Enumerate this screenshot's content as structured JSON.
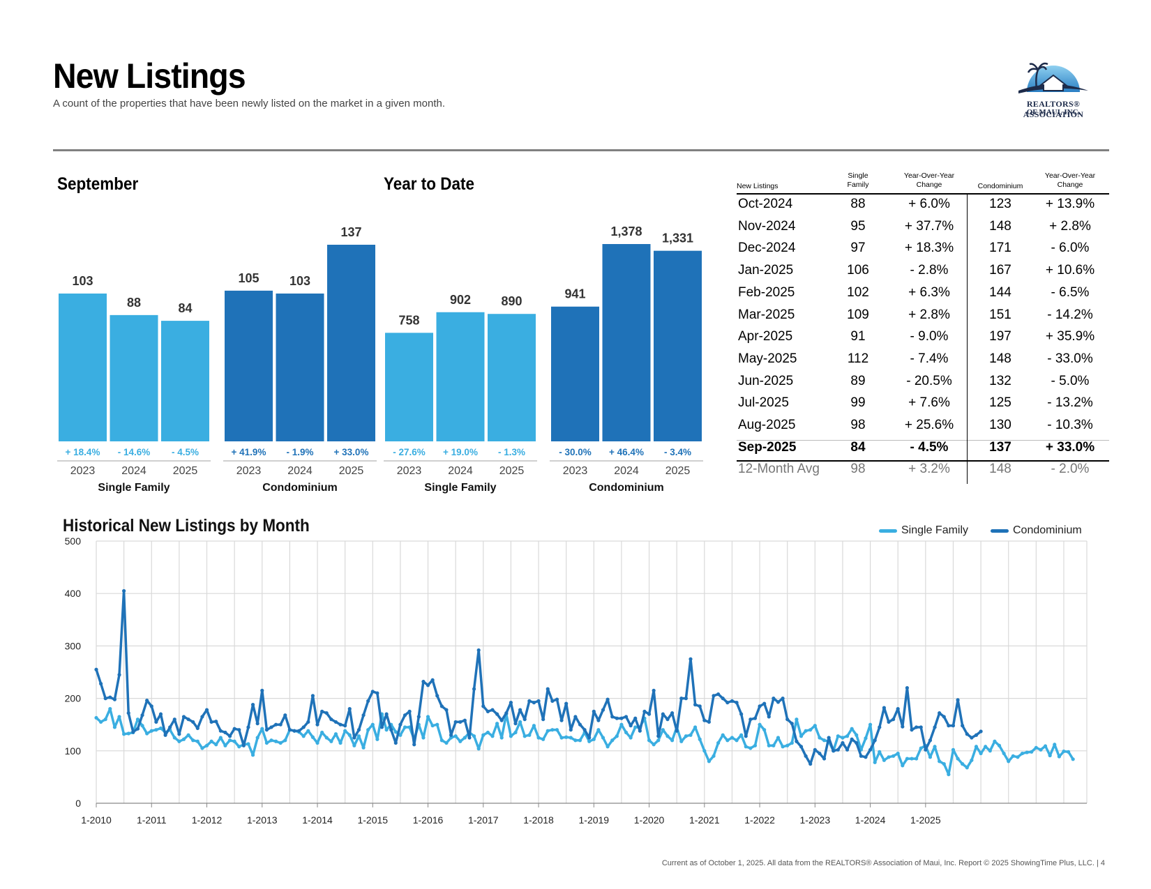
{
  "header": {
    "title": "New Listings",
    "subtitle": "A count of the properties that have been newly listed on the market in a given month."
  },
  "logo": {
    "line1": "REALTORS® ASSOCIATION",
    "line2": "OF MAUI, INC."
  },
  "colors": {
    "single_family": "#3aaee1",
    "condominium": "#1f72b8",
    "grid": "#d9d9d9",
    "sf_line": "#3aaee1",
    "condo_line": "#1f72b8"
  },
  "september": {
    "title": "September",
    "groups": [
      {
        "name": "Single Family",
        "bars": [
          {
            "year": "2023",
            "value": 103,
            "label": "103",
            "change": "+ 18.4%"
          },
          {
            "year": "2024",
            "value": 88,
            "label": "88",
            "change": "- 14.6%"
          },
          {
            "year": "2025",
            "value": 84,
            "label": "84",
            "change": "- 4.5%"
          }
        ]
      },
      {
        "name": "Condominium",
        "bars": [
          {
            "year": "2023",
            "value": 105,
            "label": "105",
            "change": "+ 41.9%"
          },
          {
            "year": "2024",
            "value": 103,
            "label": "103",
            "change": "- 1.9%"
          },
          {
            "year": "2025",
            "value": 137,
            "label": "137",
            "change": "+ 33.0%"
          }
        ]
      }
    ]
  },
  "ytd": {
    "title": "Year to Date",
    "groups": [
      {
        "name": "Single Family",
        "bars": [
          {
            "year": "2023",
            "value": 758,
            "label": "758",
            "change": "- 27.6%"
          },
          {
            "year": "2024",
            "value": 902,
            "label": "902",
            "change": "+ 19.0%"
          },
          {
            "year": "2025",
            "value": 890,
            "label": "890",
            "change": "- 1.3%"
          }
        ]
      },
      {
        "name": "Condominium",
        "bars": [
          {
            "year": "2023",
            "value": 941,
            "label": "941",
            "change": "- 30.0%"
          },
          {
            "year": "2024",
            "value": 1378,
            "label": "1,378",
            "change": "+ 46.4%"
          },
          {
            "year": "2025",
            "value": 1331,
            "label": "1,331",
            "change": "- 3.4%"
          }
        ]
      }
    ]
  },
  "table": {
    "headers": {
      "label": "New Listings",
      "sf": [
        "Single",
        "Family"
      ],
      "sf_change": [
        "Year-Over-Year",
        "Change"
      ],
      "condo": "Condominium",
      "condo_change": [
        "Year-Over-Year",
        "Change"
      ]
    },
    "rows": [
      {
        "month": "Oct-2024",
        "sf": "88",
        "sf_change": "+ 6.0%",
        "condo": "123",
        "condo_change": "+ 13.9%"
      },
      {
        "month": "Nov-2024",
        "sf": "95",
        "sf_change": "+ 37.7%",
        "condo": "148",
        "condo_change": "+ 2.8%"
      },
      {
        "month": "Dec-2024",
        "sf": "97",
        "sf_change": "+ 18.3%",
        "condo": "171",
        "condo_change": "- 6.0%"
      },
      {
        "month": "Jan-2025",
        "sf": "106",
        "sf_change": "- 2.8%",
        "condo": "167",
        "condo_change": "+ 10.6%"
      },
      {
        "month": "Feb-2025",
        "sf": "102",
        "sf_change": "+ 6.3%",
        "condo": "144",
        "condo_change": "- 6.5%"
      },
      {
        "month": "Mar-2025",
        "sf": "109",
        "sf_change": "+ 2.8%",
        "condo": "151",
        "condo_change": "- 14.2%"
      },
      {
        "month": "Apr-2025",
        "sf": "91",
        "sf_change": "- 9.0%",
        "condo": "197",
        "condo_change": "+ 35.9%"
      },
      {
        "month": "May-2025",
        "sf": "112",
        "sf_change": "- 7.4%",
        "condo": "148",
        "condo_change": "- 33.0%"
      },
      {
        "month": "Jun-2025",
        "sf": "89",
        "sf_change": "- 20.5%",
        "condo": "132",
        "condo_change": "- 5.0%"
      },
      {
        "month": "Jul-2025",
        "sf": "99",
        "sf_change": "+ 7.6%",
        "condo": "125",
        "condo_change": "- 13.2%"
      },
      {
        "month": "Aug-2025",
        "sf": "98",
        "sf_change": "+ 25.6%",
        "condo": "130",
        "condo_change": "- 10.3%"
      },
      {
        "month": "Sep-2025",
        "sf": "84",
        "sf_change": "- 4.5%",
        "condo": "137",
        "condo_change": "+ 33.0%"
      }
    ],
    "avg": {
      "month": "12-Month Avg",
      "sf": "98",
      "sf_change": "+ 3.2%",
      "condo": "148",
      "condo_change": "- 2.0%"
    }
  },
  "chart_data": {
    "type": "line",
    "title": "Historical New Listings by Month",
    "ylim": [
      0,
      500
    ],
    "yticks": [
      0,
      100,
      200,
      300,
      400,
      500
    ],
    "xticks": [
      "1-2010",
      "1-2011",
      "1-2012",
      "1-2013",
      "1-2014",
      "1-2015",
      "1-2016",
      "1-2017",
      "1-2018",
      "1-2019",
      "1-2020",
      "1-2021",
      "1-2022",
      "1-2023",
      "1-2024",
      "1-2025"
    ],
    "start": "1-2010",
    "end": "9-2025",
    "legend_position": "top-right",
    "series": [
      {
        "name": "Single Family",
        "values": [
          163,
          155,
          160,
          180,
          145,
          165,
          132,
          133,
          135,
          160,
          148,
          133,
          138,
          140,
          143,
          135,
          140,
          125,
          118,
          122,
          130,
          120,
          118,
          105,
          110,
          118,
          112,
          125,
          110,
          120,
          118,
          108,
          112,
          113,
          92,
          125,
          142,
          115,
          120,
          118,
          115,
          120,
          140,
          138,
          136,
          128,
          138,
          126,
          115,
          135,
          125,
          118,
          132,
          115,
          138,
          130,
          110,
          128,
          106,
          140,
          150,
          122,
          170,
          140,
          150,
          136,
          130,
          145,
          145,
          122,
          150,
          125,
          165,
          148,
          150,
          120,
          115,
          125,
          128,
          118,
          125,
          135,
          128,
          104,
          130,
          135,
          128,
          152,
          125,
          170,
          128,
          135,
          155,
          128,
          130,
          148,
          125,
          122,
          138,
          140,
          140,
          125,
          126,
          125,
          120,
          120,
          135,
          118,
          122,
          140,
          125,
          108,
          120,
          128,
          150,
          135,
          125,
          145,
          145,
          162,
          120,
          112,
          120,
          140,
          128,
          120,
          145,
          118,
          128,
          130,
          145,
          122,
          100,
          80,
          90,
          115,
          130,
          120,
          125,
          120,
          130,
          108,
          105,
          110,
          150,
          140,
          110,
          110,
          125,
          108,
          110,
          115,
          160,
          128,
          138,
          140,
          148,
          125,
          120,
          118,
          100,
          128,
          125,
          128,
          142,
          130,
          102,
          124,
          150,
          78,
          98,
          82,
          88,
          90,
          95,
          72,
          85,
          85,
          85,
          105,
          110,
          88,
          108,
          80,
          75,
          55,
          102,
          85,
          75,
          68,
          82,
          108,
          95,
          108,
          100,
          118,
          110,
          95,
          80,
          90,
          88,
          95,
          97,
          98,
          106,
          102,
          109,
          91,
          112,
          89,
          99,
          98,
          84
        ]
      },
      {
        "name": "Condominium",
        "values": [
          255,
          228,
          200,
          202,
          198,
          245,
          405,
          172,
          136,
          142,
          168,
          196,
          185,
          155,
          170,
          130,
          145,
          160,
          132,
          165,
          160,
          155,
          143,
          165,
          178,
          155,
          156,
          138,
          135,
          128,
          142,
          140,
          110,
          145,
          188,
          152,
          215,
          140,
          145,
          150,
          150,
          168,
          140,
          138,
          138,
          145,
          155,
          205,
          150,
          175,
          172,
          160,
          155,
          150,
          148,
          180,
          125,
          140,
          168,
          195,
          213,
          210,
          145,
          170,
          140,
          115,
          150,
          168,
          175,
          112,
          165,
          232,
          225,
          235,
          205,
          185,
          178,
          130,
          155,
          155,
          158,
          125,
          218,
          292,
          185,
          175,
          178,
          170,
          158,
          172,
          192,
          152,
          178,
          160,
          195,
          192,
          195,
          160,
          218,
          195,
          198,
          158,
          190,
          140,
          165,
          150,
          140,
          125,
          175,
          158,
          178,
          198,
          165,
          162,
          162,
          165,
          148,
          162,
          138,
          175,
          170,
          215,
          128,
          170,
          160,
          172,
          138,
          200,
          200,
          275,
          188,
          185,
          158,
          155,
          205,
          208,
          200,
          192,
          195,
          192,
          170,
          128,
          160,
          162,
          185,
          190,
          165,
          200,
          193,
          200,
          160,
          152,
          118,
          108,
          90,
          75,
          102,
          95,
          85,
          125,
          100,
          102,
          115,
          102,
          122,
          115,
          90,
          88,
          102,
          120,
          145,
          182,
          155,
          160,
          180,
          146,
          220,
          140,
          145,
          145,
          102,
          120,
          145,
          172,
          165,
          148,
          148,
          197,
          148,
          132,
          125,
          130,
          137
        ]
      }
    ]
  },
  "footer": "Current as of October 1, 2025. All data from the REALTORS® Association of Maui, Inc. Report © 2025 ShowingTime Plus, LLC.  |  4"
}
